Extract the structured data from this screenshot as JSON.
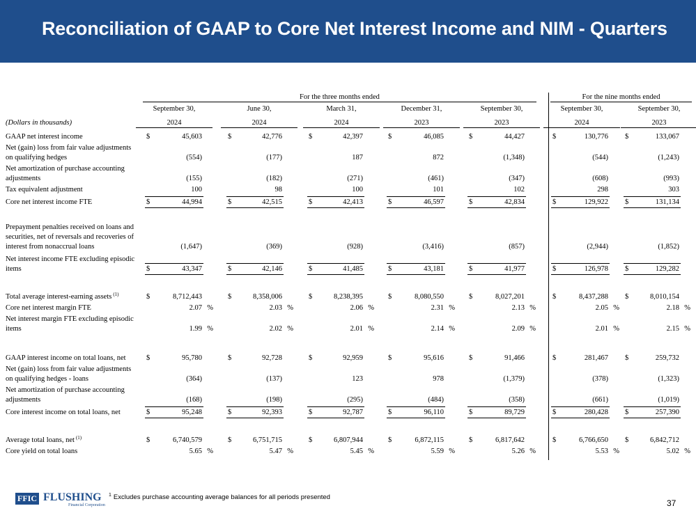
{
  "header": {
    "title": "Reconciliation of GAAP to Core Net Interest Income and NIM - Quarters"
  },
  "table": {
    "group_headers": [
      "For the three months ended",
      "For the nine months ended"
    ],
    "units_label": "(Dollars in thousands)",
    "columns": [
      [
        "September 30,",
        "2024"
      ],
      [
        "June 30,",
        "2024"
      ],
      [
        "March 31,",
        "2024"
      ],
      [
        "December 31,",
        "2023"
      ],
      [
        "September 30,",
        "2023"
      ],
      [
        "September 30,",
        "2024"
      ],
      [
        "September 30,",
        "2023"
      ]
    ],
    "rows": [
      {
        "label": [
          "GAAP net interest income"
        ],
        "prefix": "$",
        "values": [
          "45,603",
          "42,776",
          "42,397",
          "46,085",
          "44,427",
          "130,776",
          "133,067"
        ]
      },
      {
        "label": [
          "Net (gain) loss from fair value adjustments",
          "on qualifying hedges"
        ],
        "values": [
          "(554)",
          "(177)",
          "187",
          "872",
          "(1,348)",
          "(544)",
          "(1,243)"
        ]
      },
      {
        "label": [
          "Net amortization of purchase accounting",
          "adjustments"
        ],
        "values": [
          "(155)",
          "(182)",
          "(271)",
          "(461)",
          "(347)",
          "(608)",
          "(993)"
        ]
      },
      {
        "label": [
          "Tax equivalent adjustment"
        ],
        "values": [
          "100",
          "98",
          "100",
          "101",
          "102",
          "298",
          "303"
        ]
      },
      {
        "label": [
          "Core net interest income FTE"
        ],
        "prefix": "$",
        "total": true,
        "values": [
          "44,994",
          "42,515",
          "42,413",
          "46,597",
          "42,834",
          "129,922",
          "131,134"
        ]
      },
      {
        "label": [
          "Prepayment penalties received on loans and",
          "securities, net of reversals and recoveries of",
          "interest from nonaccrual loans"
        ],
        "values": [
          "(1,647)",
          "(369)",
          "(928)",
          "(3,416)",
          "(857)",
          "(2,944)",
          "(1,852)"
        ]
      },
      {
        "label": [
          "Net interest income FTE excluding episodic",
          "items"
        ],
        "prefix": "$",
        "total": true,
        "values": [
          "43,347",
          "42,146",
          "41,485",
          "43,181",
          "41,977",
          "126,978",
          "129,282"
        ]
      },
      {
        "label": [
          "Total average interest-earning assets"
        ],
        "sup": "(1)",
        "prefix": "$",
        "values": [
          "8,712,443",
          "8,358,006",
          "8,238,395",
          "8,080,550",
          "8,027,201",
          "8,437,288",
          "8,010,154"
        ]
      },
      {
        "label": [
          "Core net interest margin FTE"
        ],
        "suffix": "%",
        "values": [
          "2.07",
          "2.03",
          "2.06",
          "2.31",
          "2.13",
          "2.05",
          "2.18"
        ]
      },
      {
        "label": [
          "Net interest margin FTE excluding episodic",
          "items"
        ],
        "suffix": "%",
        "values": [
          "1.99",
          "2.02",
          "2.01",
          "2.14",
          "2.09",
          "2.01",
          "2.15"
        ]
      },
      {
        "label": [
          "GAAP interest income on total loans, net"
        ],
        "prefix": "$",
        "values": [
          "95,780",
          "92,728",
          "92,959",
          "95,616",
          "91,466",
          "281,467",
          "259,732"
        ]
      },
      {
        "label": [
          "Net (gain) loss from fair value adjustments",
          "on qualifying hedges - loans"
        ],
        "values": [
          "(364)",
          "(137)",
          "123",
          "978",
          "(1,379)",
          "(378)",
          "(1,323)"
        ]
      },
      {
        "label": [
          "Net amortization of purchase accounting",
          "adjustments"
        ],
        "values": [
          "(168)",
          "(198)",
          "(295)",
          "(484)",
          "(358)",
          "(661)",
          "(1,019)"
        ]
      },
      {
        "label": [
          "Core interest income on total loans, net"
        ],
        "prefix": "$",
        "total": true,
        "values": [
          "95,248",
          "92,393",
          "92,787",
          "96,110",
          "89,729",
          "280,428",
          "257,390"
        ]
      },
      {
        "label": [
          "Average total loans, net"
        ],
        "sup": "(1)",
        "prefix": "$",
        "values": [
          "6,740,579",
          "6,751,715",
          "6,807,944",
          "6,872,115",
          "6,817,642",
          "6,766,650",
          "6,842,712"
        ]
      },
      {
        "label": [
          "Core yield on total loans"
        ],
        "suffix": "%",
        "values": [
          "5.65",
          "5.47",
          "5.45",
          "5.59",
          "5.26",
          "5.53",
          "5.02"
        ]
      }
    ]
  },
  "footer": {
    "logo": {
      "mark": "FFIC",
      "name": "FLUSHING",
      "subtitle": "Financial Corporation"
    },
    "footnote": {
      "marker": "1",
      "text": "Excludes purchase accounting average balances for all periods presented"
    },
    "page_number": "37"
  }
}
